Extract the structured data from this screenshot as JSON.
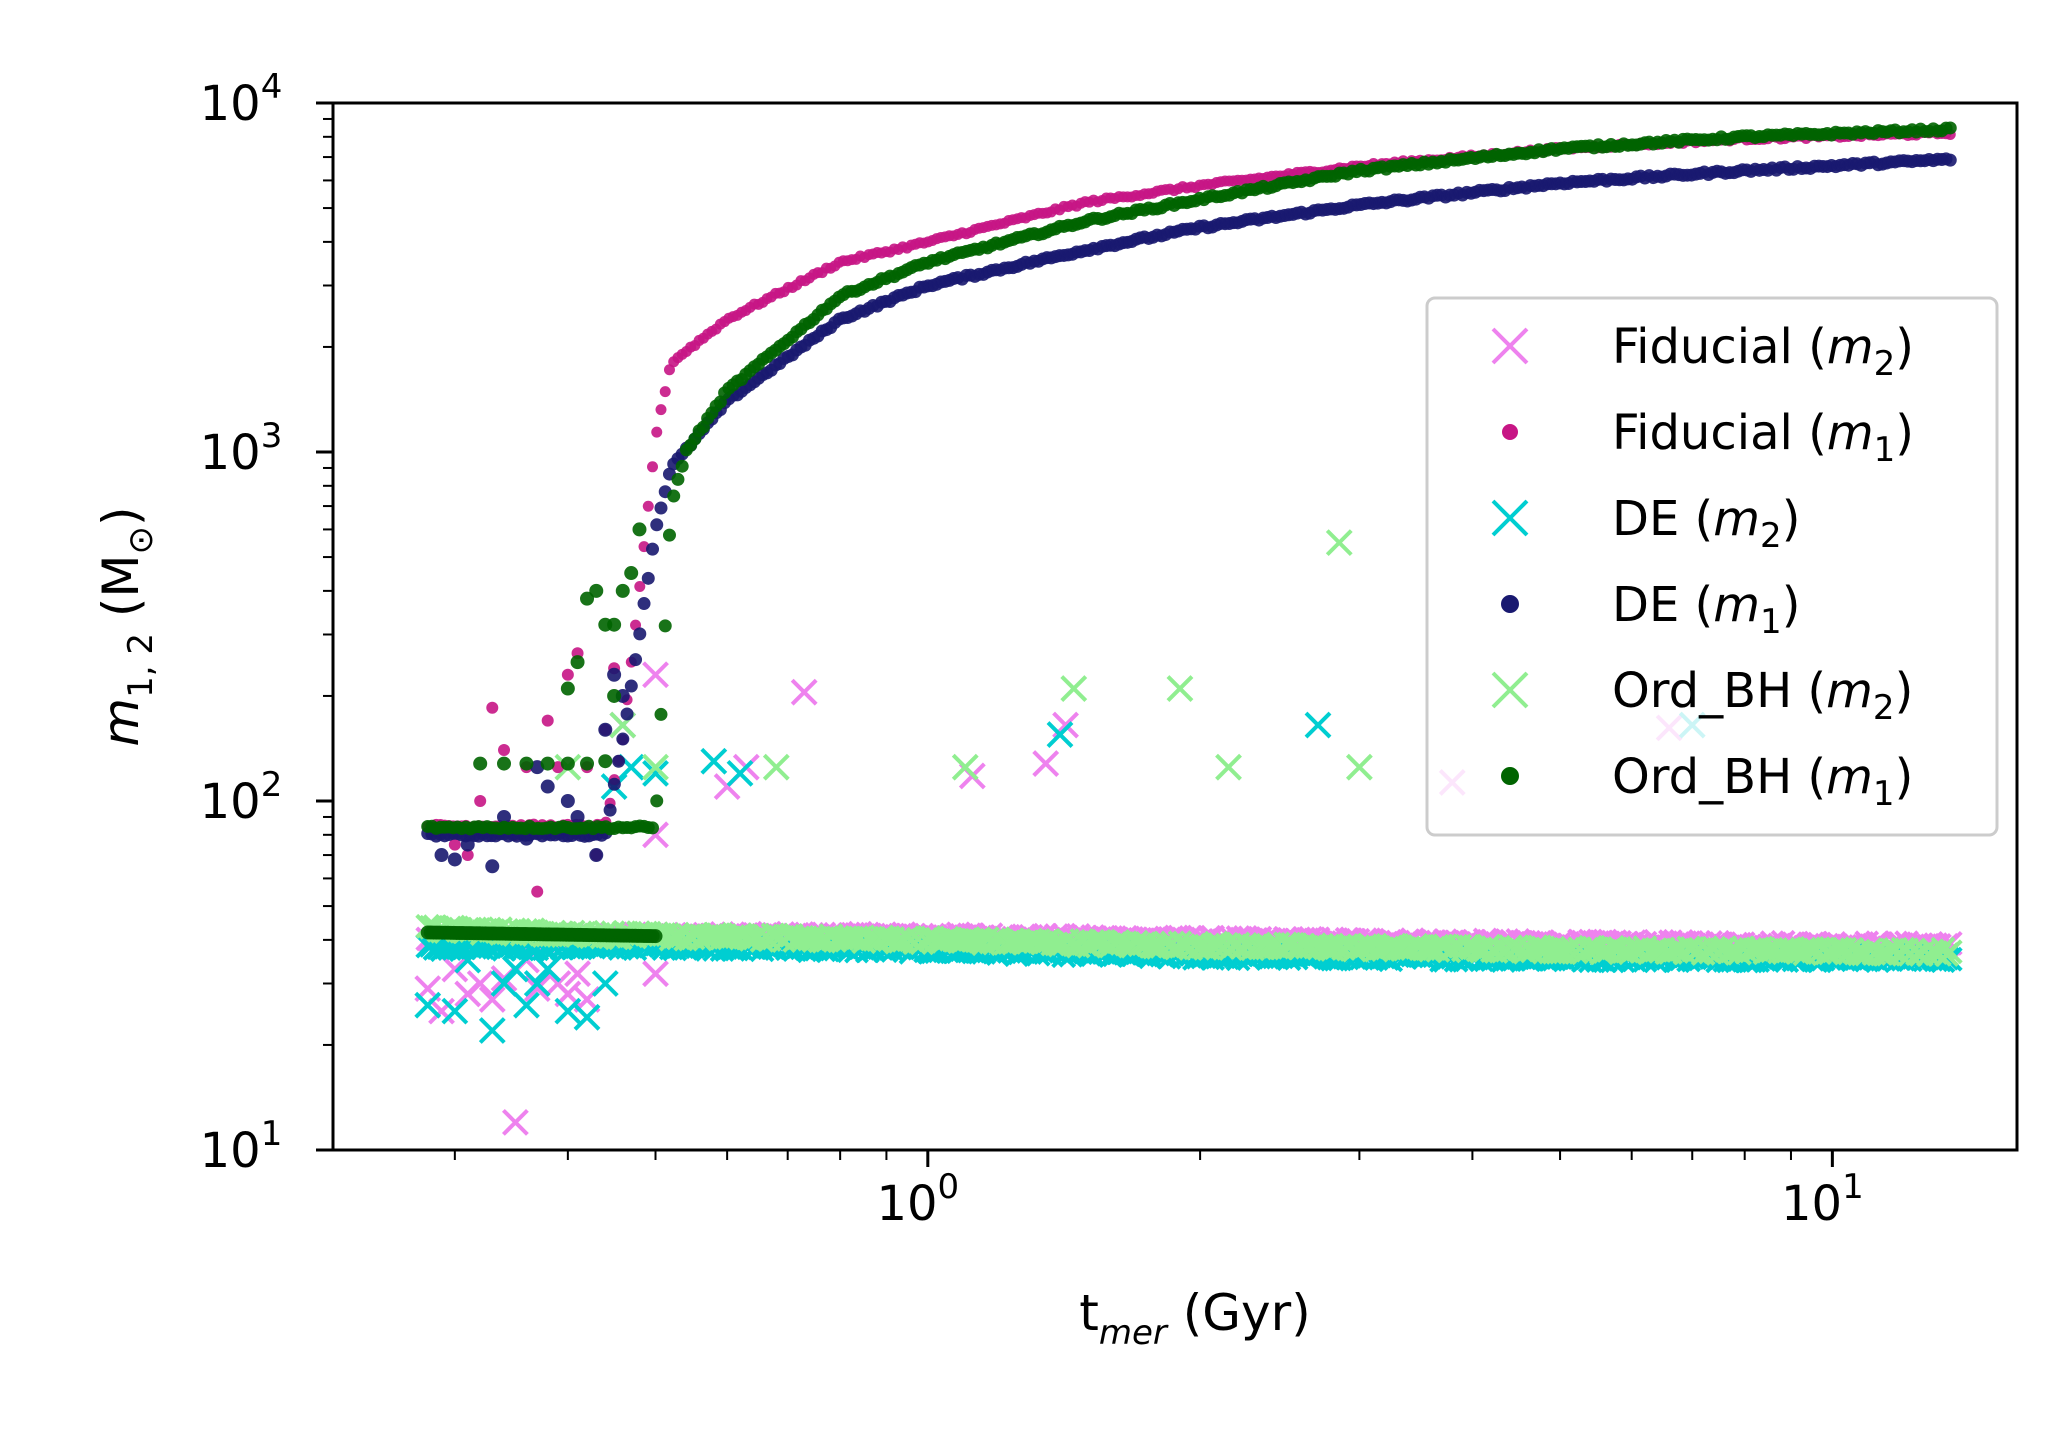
{
  "chart_data": {
    "type": "scatter",
    "xscale": "log",
    "yscale": "log",
    "xlim": [
      0.22,
      16
    ],
    "ylim": [
      10,
      10000
    ],
    "xlabel": {
      "main": "t",
      "sub": "mer",
      "unit": " (Gyr)"
    },
    "ylabel": {
      "var": "m",
      "sub": "1, 2",
      "open": " (M",
      "sunsub": "⊙",
      "close": ")"
    },
    "xticks": [
      {
        "value": 1,
        "base": "10",
        "exp": "0"
      },
      {
        "value": 10,
        "base": "10",
        "exp": "1"
      }
    ],
    "yticks": [
      {
        "value": 10,
        "base": "10",
        "exp": "1"
      },
      {
        "value": 100,
        "base": "10",
        "exp": "2"
      },
      {
        "value": 1000,
        "base": "10",
        "exp": "3"
      },
      {
        "value": 10000,
        "base": "10",
        "exp": "4"
      }
    ],
    "legend_location": "center-right",
    "series": [
      {
        "key": "fid_m2",
        "name": "Fiducial",
        "sym": "m",
        "sub": "2",
        "marker": "x",
        "color": "#ee82ee",
        "curve": [
          [
            0.28,
            40
          ],
          [
            0.5,
            41
          ],
          [
            1,
            41
          ],
          [
            2,
            40
          ],
          [
            5,
            39
          ],
          [
            13.5,
            38.5
          ]
        ],
        "scatter": [
          [
            0.28,
            29
          ],
          [
            0.29,
            25
          ],
          [
            0.3,
            33
          ],
          [
            0.31,
            28
          ],
          [
            0.32,
            30
          ],
          [
            0.33,
            27
          ],
          [
            0.34,
            31
          ],
          [
            0.35,
            12
          ],
          [
            0.36,
            35
          ],
          [
            0.37,
            29
          ],
          [
            0.38,
            33
          ],
          [
            0.39,
            30
          ],
          [
            0.4,
            28
          ],
          [
            0.41,
            32
          ],
          [
            0.42,
            27
          ],
          [
            0.5,
            32
          ],
          [
            0.5,
            80
          ],
          [
            0.5,
            230
          ],
          [
            0.46,
            165
          ],
          [
            0.6,
            110
          ],
          [
            0.63,
            125
          ],
          [
            0.73,
            205
          ],
          [
            1.12,
            118
          ],
          [
            1.35,
            128
          ],
          [
            1.42,
            165
          ],
          [
            3.8,
            113
          ],
          [
            6.6,
            162
          ]
        ]
      },
      {
        "key": "fid_m1",
        "name": "Fiducial",
        "sym": "m",
        "sub": "1",
        "marker": "dot",
        "color": "#c71585",
        "curve": [
          [
            0.28,
            85
          ],
          [
            0.44,
            85
          ],
          [
            0.46,
            150
          ],
          [
            0.48,
            400
          ],
          [
            0.5,
            1100
          ],
          [
            0.52,
            1800
          ],
          [
            0.6,
            2400
          ],
          [
            0.8,
            3500
          ],
          [
            1,
            4000
          ],
          [
            1.5,
            5200
          ],
          [
            2,
            5800
          ],
          [
            3,
            6600
          ],
          [
            5,
            7400
          ],
          [
            8,
            7900
          ],
          [
            13.5,
            8200
          ]
        ],
        "scatter": [
          [
            0.3,
            75
          ],
          [
            0.31,
            70
          ],
          [
            0.32,
            100
          ],
          [
            0.33,
            185
          ],
          [
            0.34,
            140
          ],
          [
            0.35,
            80
          ],
          [
            0.36,
            125
          ],
          [
            0.37,
            55
          ],
          [
            0.38,
            170
          ],
          [
            0.39,
            125
          ],
          [
            0.4,
            230
          ],
          [
            0.41,
            265
          ],
          [
            0.42,
            125
          ],
          [
            0.43,
            70
          ],
          [
            0.44,
            160
          ],
          [
            0.45,
            240
          ]
        ]
      },
      {
        "key": "de_m2",
        "name": "DE",
        "sym": "m",
        "sub": "2",
        "marker": "x",
        "color": "#00ced1",
        "curve": [
          [
            0.28,
            38
          ],
          [
            0.5,
            38.5
          ],
          [
            1,
            37.5
          ],
          [
            2,
            36
          ],
          [
            5,
            35.5
          ],
          [
            13.5,
            35.5
          ]
        ],
        "scatter": [
          [
            0.28,
            26
          ],
          [
            0.3,
            25
          ],
          [
            0.31,
            35
          ],
          [
            0.33,
            22
          ],
          [
            0.34,
            30
          ],
          [
            0.35,
            33
          ],
          [
            0.36,
            26
          ],
          [
            0.37,
            30
          ],
          [
            0.38,
            33
          ],
          [
            0.4,
            25
          ],
          [
            0.42,
            24
          ],
          [
            0.44,
            30
          ],
          [
            0.45,
            110
          ],
          [
            0.47,
            125
          ],
          [
            0.5,
            120
          ],
          [
            0.58,
            130
          ],
          [
            0.62,
            120
          ],
          [
            1.4,
            155
          ],
          [
            2.7,
            165
          ],
          [
            7,
            165
          ]
        ]
      },
      {
        "key": "de_m1",
        "name": "DE",
        "sym": "m",
        "sub": "1",
        "marker": "dot",
        "color": "#191970",
        "curve": [
          [
            0.28,
            80
          ],
          [
            0.44,
            80
          ],
          [
            0.46,
            150
          ],
          [
            0.48,
            300
          ],
          [
            0.5,
            600
          ],
          [
            0.52,
            900
          ],
          [
            0.6,
            1400
          ],
          [
            0.8,
            2400
          ],
          [
            1,
            3000
          ],
          [
            1.5,
            3800
          ],
          [
            2,
            4400
          ],
          [
            3,
            5100
          ],
          [
            5,
            5900
          ],
          [
            8,
            6400
          ],
          [
            13.5,
            6900
          ]
        ],
        "scatter": [
          [
            0.29,
            70
          ],
          [
            0.3,
            68
          ],
          [
            0.31,
            75
          ],
          [
            0.33,
            65
          ],
          [
            0.34,
            90
          ],
          [
            0.36,
            78
          ],
          [
            0.37,
            125
          ],
          [
            0.38,
            110
          ],
          [
            0.4,
            100
          ],
          [
            0.41,
            90
          ],
          [
            0.43,
            70
          ],
          [
            0.44,
            160
          ],
          [
            0.45,
            230
          ],
          [
            0.46,
            200
          ]
        ]
      },
      {
        "key": "ord_m2",
        "name": "Ord_BH",
        "sym": "m",
        "sub": "2",
        "marker": "x",
        "color": "#90ee90",
        "curve": [
          [
            0.28,
            43
          ],
          [
            0.5,
            41
          ],
          [
            1,
            40
          ],
          [
            2,
            38.5
          ],
          [
            5,
            37.5
          ],
          [
            13.5,
            37
          ]
        ],
        "scatter": [
          [
            0.4,
            125
          ],
          [
            0.46,
            165
          ],
          [
            0.5,
            125
          ],
          [
            0.68,
            125
          ],
          [
            1.1,
            125
          ],
          [
            1.45,
            210
          ],
          [
            1.9,
            210
          ],
          [
            2.15,
            125
          ],
          [
            2.85,
            550
          ],
          [
            3,
            125
          ]
        ]
      },
      {
        "key": "ord_m1",
        "name": "Ord_BH",
        "sym": "m",
        "sub": "1",
        "marker": "dot",
        "color": "#006400",
        "curve": [
          [
            0.28,
            84
          ],
          [
            0.5,
            84
          ],
          [
            0.52,
            700
          ],
          [
            0.54,
            1000
          ],
          [
            0.6,
            1500
          ],
          [
            0.8,
            2800
          ],
          [
            1,
            3500
          ],
          [
            1.5,
            4600
          ],
          [
            2,
            5300
          ],
          [
            3,
            6400
          ],
          [
            5,
            7400
          ],
          [
            8,
            8000
          ],
          [
            13.5,
            8400
          ]
        ],
        "flat": [
          [
            0.28,
            42
          ],
          [
            0.5,
            41
          ]
        ],
        "scatter": [
          [
            0.32,
            128
          ],
          [
            0.34,
            128
          ],
          [
            0.36,
            128
          ],
          [
            0.38,
            128
          ],
          [
            0.4,
            128
          ],
          [
            0.42,
            128
          ],
          [
            0.44,
            130
          ],
          [
            0.45,
            320
          ],
          [
            0.46,
            400
          ],
          [
            0.47,
            450
          ],
          [
            0.48,
            600
          ],
          [
            0.4,
            210
          ],
          [
            0.41,
            250
          ],
          [
            0.42,
            380
          ],
          [
            0.43,
            400
          ],
          [
            0.44,
            320
          ],
          [
            0.45,
            200
          ]
        ]
      }
    ]
  }
}
